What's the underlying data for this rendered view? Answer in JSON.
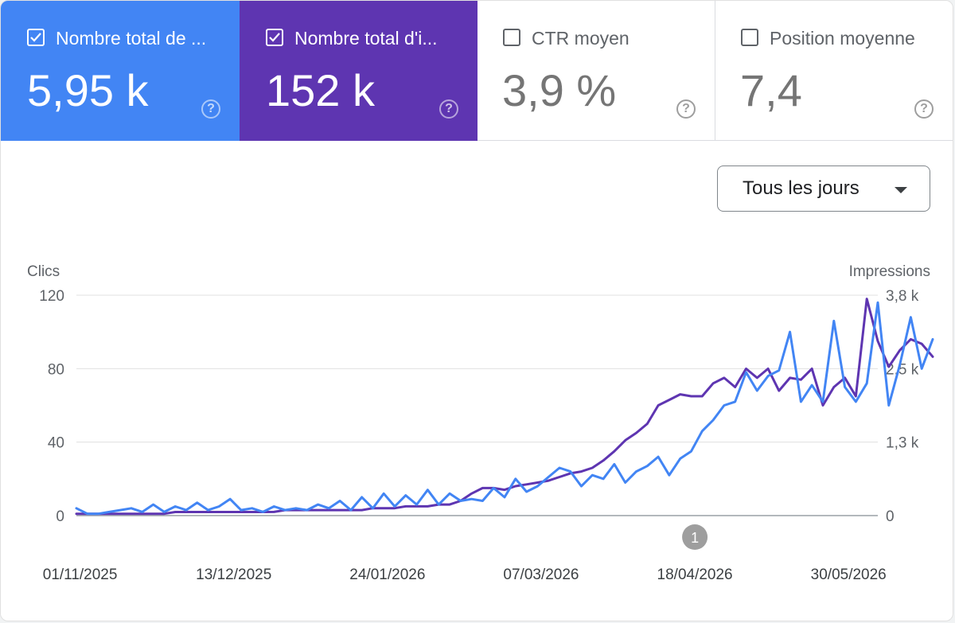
{
  "colors": {
    "clicks": "#4285f4",
    "impressions": "#5e35b1",
    "card_clicks_bg": "#4285f4",
    "card_impressions_bg": "#5e35b1"
  },
  "cards": [
    {
      "label": "Nombre total de ...",
      "value": "5,95 k",
      "checked": true,
      "icon": "help-circle-icon",
      "help": "?"
    },
    {
      "label": "Nombre total d'i...",
      "value": "152 k",
      "checked": true,
      "icon": "help-circle-icon",
      "help": "?"
    },
    {
      "label": "CTR moyen",
      "value": "3,9 %",
      "checked": false,
      "icon": "help-circle-icon",
      "help": "?"
    },
    {
      "label": "Position moyenne",
      "value": "7,4",
      "checked": false,
      "icon": "help-circle-icon",
      "help": "?"
    }
  ],
  "granularity": {
    "label": "Tous les jours",
    "icon": "caret-down-icon"
  },
  "chart_data": {
    "type": "line",
    "ylabel_left": "Clics",
    "ylabel_right": "Impressions",
    "yticks_left": [
      "120",
      "80",
      "40",
      "0"
    ],
    "yticks_right": [
      "3,8 k",
      "2,5 k",
      "1,3 k",
      "0"
    ],
    "ylim_left": [
      0,
      120
    ],
    "ylim_right": [
      0,
      3800
    ],
    "x_tick_labels": [
      "01/11/2025",
      "13/12/2025",
      "24/01/2026",
      "07/03/2026",
      "18/04/2026",
      "30/05/2026"
    ],
    "x_range": [
      "2025-10-31",
      "2026-06-07"
    ],
    "annotation": {
      "date": "2026-04-18",
      "label": "1"
    },
    "grid": true,
    "series": [
      {
        "name": "Clics",
        "axis": "left",
        "start_date": "2025-10-31",
        "step_days": 3,
        "values": [
          4,
          1,
          1,
          2,
          3,
          4,
          2,
          6,
          2,
          5,
          3,
          7,
          3,
          5,
          9,
          3,
          4,
          2,
          5,
          3,
          4,
          3,
          6,
          4,
          8,
          3,
          10,
          4,
          12,
          5,
          11,
          6,
          14,
          6,
          12,
          8,
          9,
          8,
          15,
          10,
          20,
          13,
          16,
          21,
          26,
          24,
          16,
          22,
          20,
          28,
          18,
          24,
          27,
          32,
          22,
          31,
          35,
          46,
          52,
          60,
          62,
          78,
          68,
          76,
          79,
          100,
          62,
          71,
          62,
          106,
          70,
          62,
          72,
          116,
          60,
          82,
          108,
          80,
          96
        ]
      },
      {
        "name": "Impressions",
        "axis": "right",
        "start_date": "2025-10-31",
        "step_days": 3,
        "values": [
          31,
          31,
          31,
          31,
          31,
          31,
          31,
          31,
          31,
          62,
          62,
          62,
          62,
          62,
          62,
          62,
          62,
          62,
          63,
          94,
          94,
          94,
          95,
          95,
          95,
          95,
          95,
          127,
          127,
          127,
          159,
          159,
          159,
          190,
          190,
          254,
          380,
          475,
          475,
          444,
          507,
          538,
          570,
          602,
          665,
          728,
          760,
          823,
          950,
          1108,
          1298,
          1425,
          1583,
          1900,
          1995,
          2090,
          2058,
          2058,
          2280,
          2375,
          2216,
          2533,
          2375,
          2533,
          2153,
          2375,
          2343,
          2533,
          1900,
          2216,
          2375,
          2058,
          3737,
          3008,
          2565,
          2850,
          3040,
          2962,
          2740
        ]
      }
    ]
  }
}
